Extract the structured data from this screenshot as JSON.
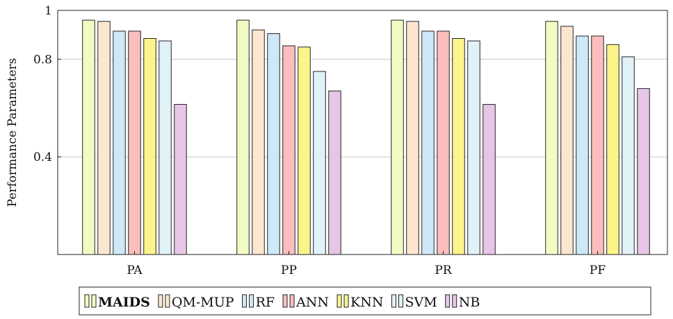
{
  "chart_data": {
    "type": "bar",
    "categories": [
      "PA",
      "PP",
      "PR",
      "PF"
    ],
    "ylabel": "Performance Parameters",
    "xlabel": "",
    "title": "",
    "ylim": [
      0,
      1
    ],
    "yticks": [
      0.4,
      0.8,
      1
    ],
    "ytick_labels": [
      "0.4",
      "0.8",
      "1"
    ],
    "grid": "horizontal",
    "legend_position": "bottom",
    "series": [
      {
        "name": "MAIDS",
        "color": "#f2fcc2",
        "bold": true,
        "values": [
          0.96,
          0.96,
          0.96,
          0.955
        ]
      },
      {
        "name": "QM-MUP",
        "color": "#fde6cf",
        "bold": false,
        "values": [
          0.955,
          0.92,
          0.955,
          0.935
        ]
      },
      {
        "name": "RF",
        "color": "#cfe8f8",
        "bold": false,
        "values": [
          0.915,
          0.905,
          0.915,
          0.895
        ]
      },
      {
        "name": "ANN",
        "color": "#fbbdbd",
        "bold": false,
        "values": [
          0.915,
          0.855,
          0.915,
          0.895
        ]
      },
      {
        "name": "KNN",
        "color": "#fbf48a",
        "bold": false,
        "values": [
          0.885,
          0.85,
          0.885,
          0.86
        ]
      },
      {
        "name": "SVM",
        "color": "#e0f2f7",
        "bold": false,
        "values": [
          0.875,
          0.75,
          0.875,
          0.81
        ]
      },
      {
        "name": "NB",
        "color": "#e6c5e6",
        "bold": false,
        "values": [
          0.615,
          0.67,
          0.615,
          0.68
        ]
      }
    ]
  }
}
